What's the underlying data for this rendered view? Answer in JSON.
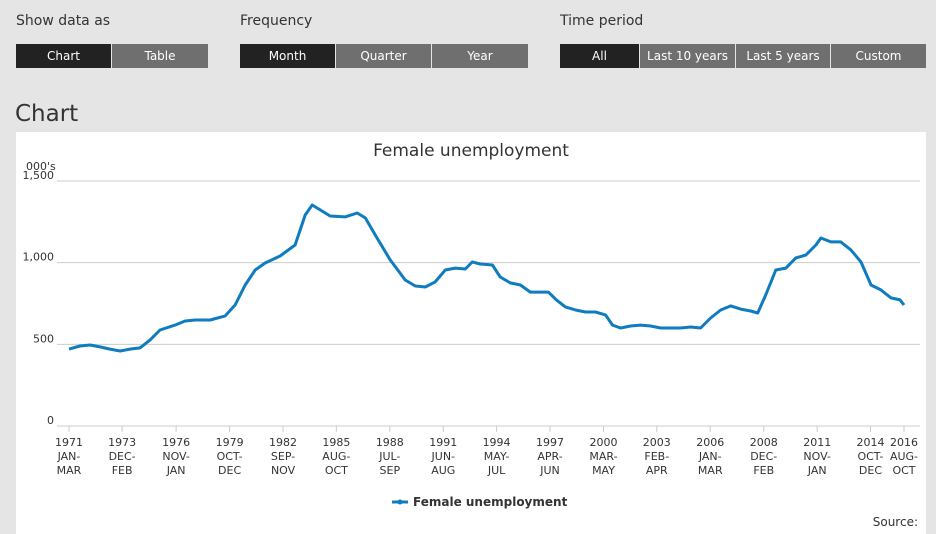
{
  "controls": [
    {
      "label": "Show data as",
      "options": [
        "Chart",
        "Table"
      ],
      "selected": 0
    },
    {
      "label": "Frequency",
      "options": [
        "Month",
        "Quarter",
        "Year"
      ],
      "selected": 0
    },
    {
      "label": "Time period",
      "options": [
        "All",
        "Last 10 years",
        "Last 5 years",
        "Custom"
      ],
      "selected": 0
    }
  ],
  "section_title": "Chart",
  "chart_data": {
    "type": "line",
    "title": "Female unemployment",
    "y_unit": "000's",
    "source": "Source:",
    "xlim": [
      1971.1,
      2016.7
    ],
    "ylim": [
      0,
      1500
    ],
    "yticks": [
      0,
      500,
      {
        "value": 1000,
        "label": "1,000"
      },
      {
        "value": 1500,
        "label": "1,500"
      }
    ],
    "xticks": [
      {
        "value": 1971.1,
        "label": [
          "1971",
          "JAN-",
          "MAR"
        ]
      },
      {
        "value": 1974.0,
        "label": [
          "1973",
          "DEC-",
          "FEB"
        ]
      },
      {
        "value": 1976.95,
        "label": [
          "1976",
          "NOV-",
          "JAN"
        ]
      },
      {
        "value": 1979.87,
        "label": [
          "1979",
          "OCT-",
          "DEC"
        ]
      },
      {
        "value": 1982.79,
        "label": [
          "1982",
          "SEP-",
          "NOV"
        ]
      },
      {
        "value": 1985.7,
        "label": [
          "1985",
          "AUG-",
          "OCT"
        ]
      },
      {
        "value": 1988.62,
        "label": [
          "1988",
          "JUL-",
          "SEP"
        ]
      },
      {
        "value": 1991.54,
        "label": [
          "1991",
          "JUN-",
          "AUG"
        ]
      },
      {
        "value": 1994.45,
        "label": [
          "1994",
          "MAY-",
          "JUL"
        ]
      },
      {
        "value": 1997.37,
        "label": [
          "1997",
          "APR-",
          "JUN"
        ]
      },
      {
        "value": 2000.29,
        "label": [
          "2000",
          "MAR-",
          "MAY"
        ]
      },
      {
        "value": 2003.2,
        "label": [
          "2003",
          "FEB-",
          "APR"
        ]
      },
      {
        "value": 2006.12,
        "label": [
          "2006",
          "JAN-",
          "MAR"
        ]
      },
      {
        "value": 2009.04,
        "label": [
          "2008",
          "DEC-",
          "FEB"
        ]
      },
      {
        "value": 2011.96,
        "label": [
          "2011",
          "NOV-",
          "JAN"
        ]
      },
      {
        "value": 2014.87,
        "label": [
          "2014",
          "OCT-",
          "DEC"
        ]
      },
      {
        "value": 2016.7,
        "label": [
          "2016",
          "AUG-",
          "OCT"
        ]
      }
    ],
    "grid": true,
    "x": [
      1971.1,
      1971.7,
      1972.25,
      1972.79,
      1973.34,
      1973.89,
      1974.43,
      1974.98,
      1975.53,
      1976.07,
      1976.89,
      1977.44,
      1977.99,
      1978.81,
      1979.63,
      1980.17,
      1980.72,
      1981.27,
      1981.81,
      1982.63,
      1983.45,
      1984.0,
      1984.38,
      1984.82,
      1985.36,
      1986.18,
      1986.84,
      1987.28,
      1987.82,
      1988.64,
      1989.46,
      1990.01,
      1990.56,
      1991.1,
      1991.65,
      1992.19,
      1992.74,
      1993.12,
      1993.56,
      1994.22,
      1994.65,
      1995.2,
      1995.75,
      1996.29,
      1996.84,
      1997.28,
      1997.72,
      1998.21,
      1998.76,
      1999.3,
      1999.85,
      2000.4,
      2000.78,
      2001.22,
      2001.77,
      2002.31,
      2002.86,
      2003.41,
      2003.95,
      2004.5,
      2005.05,
      2005.59,
      2006.14,
      2006.69,
      2007.24,
      2007.78,
      2008.33,
      2008.71,
      2009.15,
      2009.7,
      2010.25,
      2010.79,
      2011.34,
      2011.89,
      2012.16,
      2012.71,
      2013.25,
      2013.8,
      2014.35,
      2014.9,
      2015.44,
      2015.99,
      2016.48,
      2016.7
    ],
    "series": [
      {
        "name": "Female unemployment",
        "color": "#0f7cc0",
        "values": [
          471,
          490,
          496,
          484,
          471,
          459,
          471,
          478,
          527,
          588,
          618,
          643,
          649,
          649,
          674,
          741,
          863,
          955,
          998,
          1041,
          1108,
          1292,
          1353,
          1323,
          1286,
          1280,
          1304,
          1274,
          1170,
          1017,
          894,
          857,
          851,
          882,
          955,
          967,
          961,
          1004,
          992,
          986,
          912,
          876,
          863,
          820,
          820,
          820,
          772,
          729,
          710,
          698,
          698,
          680,
          618,
          600,
          612,
          618,
          612,
          600,
          600,
          600,
          606,
          600,
          661,
          710,
          735,
          716,
          704,
          692,
          802,
          955,
          967,
          1029,
          1047,
          1108,
          1151,
          1127,
          1127,
          1078,
          1004,
          863,
          833,
          784,
          772,
          741
        ]
      }
    ]
  }
}
